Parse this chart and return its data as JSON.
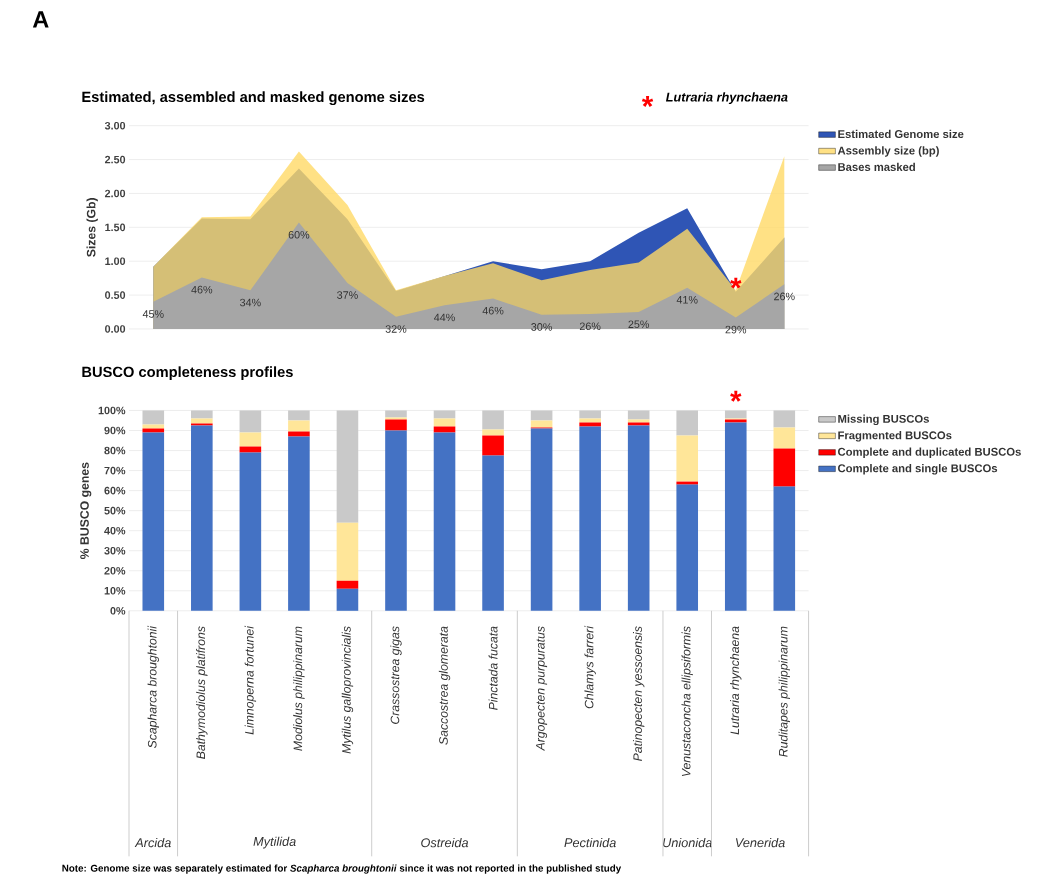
{
  "chart_data": [
    {
      "type": "area",
      "title": "Estimated, assembled and masked genome sizes",
      "ylabel": "Sizes (Gb)",
      "categories": [
        null,
        null,
        null,
        null,
        null,
        null,
        null,
        null,
        null,
        null,
        null,
        null,
        null,
        null
      ],
      "series": [
        {
          "name": "Estimated Genome size",
          "color": "#2f55b5",
          "values": [
            0.92,
            1.63,
            1.62,
            2.37,
            1.62,
            0.56,
            0.78,
            1.0,
            0.88,
            1.0,
            1.42,
            1.78,
            0.55,
            1.35
          ]
        },
        {
          "name": "Assembly size (bp)",
          "color": "#ffd966",
          "values": [
            0.92,
            1.65,
            1.66,
            2.62,
            1.83,
            0.57,
            0.78,
            0.97,
            0.72,
            0.87,
            0.98,
            1.48,
            0.57,
            2.55
          ]
        },
        {
          "name": "Bases masked",
          "color": "#a6a6a6",
          "values": [
            0.4,
            0.76,
            0.57,
            1.57,
            0.68,
            0.18,
            0.35,
            0.45,
            0.21,
            0.22,
            0.25,
            0.61,
            0.17,
            0.66
          ]
        }
      ],
      "ylim": [
        0,
        3
      ],
      "yticks": [
        {
          "value": 0,
          "label": "0.00"
        },
        {
          "value": 0.5,
          "label": "0.50"
        },
        {
          "value": 1,
          "label": "1.00"
        },
        {
          "value": 1.5,
          "label": "1.50"
        },
        {
          "value": 2,
          "label": "2.00"
        },
        {
          "value": 2.5,
          "label": "2.50"
        },
        {
          "value": 3,
          "label": "3.00"
        }
      ],
      "grid": "y",
      "legend": "right",
      "tick_labels": "y",
      "annotations": [
        "A",
        "*",
        "Lutraria rhynchaena",
        "*",
        "45%",
        "46%",
        "34%",
        "60%",
        "37%",
        "32%",
        "44%",
        "46%",
        "30%",
        "26%",
        "25%",
        "41%",
        "29%",
        "26%"
      ]
    },
    {
      "type": "bar",
      "stacked": true,
      "title": "BUSCO completeness profiles",
      "ylabel": "% BUSCO genes",
      "categories": [
        "Scapharca broughtonii",
        "Bathymodiolus platifrons",
        "Limnoperna fortunei",
        "Modiolus philippinarum",
        "Mytilus galloprovincialis",
        "Crassostrea gigas",
        "Saccostrea glomerata",
        "Pinctada fucata",
        "Argopecten purpuratus",
        "Chlamys farreri",
        "Patinopecten yessoensis",
        "Venustaconcha ellipsiformis",
        "Lutraria rhynchaena",
        "Ruditapes philippinarum"
      ],
      "series": [
        {
          "name": "Complete and single BUSCOs",
          "color": "#4472c4",
          "values": [
            89,
            92.5,
            79,
            87,
            11,
            90,
            89,
            77.5,
            91,
            92,
            92.5,
            63,
            94,
            62
          ]
        },
        {
          "name": "Complete and duplicated BUSCOs",
          "color": "#ff0000",
          "values": [
            2,
            1,
            3,
            2.5,
            4,
            5.5,
            3,
            10,
            0.5,
            2,
            1.5,
            1.5,
            1.5,
            19
          ]
        },
        {
          "name": "Fragmented BUSCOs",
          "color": "#ffe699",
          "values": [
            2,
            2.5,
            7,
            5.5,
            29,
            1,
            4,
            3,
            3.5,
            2,
            1.5,
            23,
            0.5,
            10.5
          ]
        },
        {
          "name": "Missing BUSCOs",
          "color": "#c9c9c9",
          "values": [
            7,
            4,
            11,
            5,
            56,
            3.5,
            4,
            9.5,
            5,
            4,
            4.5,
            12.5,
            4,
            8.5
          ]
        }
      ],
      "ylim": [
        0,
        100
      ],
      "yticks": [
        {
          "value": 0,
          "label": "0%"
        },
        {
          "value": 10,
          "label": "10%"
        },
        {
          "value": 20,
          "label": "20%"
        },
        {
          "value": 30,
          "label": "30%"
        },
        {
          "value": 40,
          "label": "40%"
        },
        {
          "value": 50,
          "label": "50%"
        },
        {
          "value": 60,
          "label": "60%"
        },
        {
          "value": 70,
          "label": "70%"
        },
        {
          "value": 80,
          "label": "80%"
        },
        {
          "value": 90,
          "label": "90%"
        },
        {
          "value": 100,
          "label": "100%"
        }
      ],
      "grid": "y",
      "legend": "right",
      "annotations": [
        "*",
        "Arcida",
        "Mytilida",
        "Ostreida",
        "Pectinida",
        "Unionida",
        "Venerida",
        "Note: Genome size was separately estimated for *Scapharca broughtonii* since it was not reported in the published study"
      ]
    }
  ]
}
